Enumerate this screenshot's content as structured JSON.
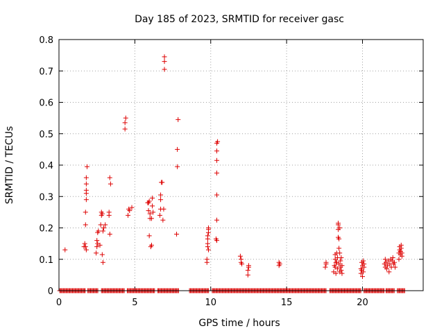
{
  "chart_data": {
    "type": "scatter",
    "title": "Day 185 of 2023, SRMTID for receiver gasc",
    "xlabel": "GPS time / hours",
    "ylabel": "SRMTID / TECUs",
    "xlim": [
      0,
      24
    ],
    "ylim": [
      0,
      0.8
    ],
    "xticks": [
      0,
      5,
      10,
      15,
      20
    ],
    "xtick_labels": [
      "0",
      "5",
      "10",
      "15",
      "20"
    ],
    "yticks": [
      0,
      0.1,
      0.2,
      0.3,
      0.4,
      0.5,
      0.6,
      0.7,
      0.8
    ],
    "ytick_labels": [
      "0",
      "0.1",
      "0.2",
      "0.3",
      "0.4",
      "0.5",
      "0.6",
      "0.7",
      "0.8"
    ],
    "grid": true,
    "marker": "+",
    "color": "#dd0000",
    "baseline_ranges": [
      [
        0.05,
        1.75
      ],
      [
        1.9,
        2.6
      ],
      [
        2.8,
        4.3
      ],
      [
        4.5,
        6.3
      ],
      [
        6.5,
        7.9
      ],
      [
        8.6,
        9.9
      ],
      [
        10.1,
        17.6
      ],
      [
        17.85,
        19.9
      ],
      [
        20.1,
        21.45
      ],
      [
        21.55,
        22.1
      ],
      [
        22.3,
        22.8
      ]
    ],
    "points": [
      [
        0.4,
        0.13
      ],
      [
        1.65,
        0.14
      ],
      [
        1.7,
        0.15
      ],
      [
        1.75,
        0.21
      ],
      [
        1.75,
        0.25
      ],
      [
        1.8,
        0.29
      ],
      [
        1.8,
        0.31
      ],
      [
        1.8,
        0.32
      ],
      [
        1.8,
        0.34
      ],
      [
        1.8,
        0.36
      ],
      [
        1.85,
        0.395
      ],
      [
        1.75,
        0.14
      ],
      [
        1.8,
        0.13
      ],
      [
        2.45,
        0.12
      ],
      [
        2.5,
        0.14
      ],
      [
        2.5,
        0.16
      ],
      [
        2.55,
        0.15
      ],
      [
        2.55,
        0.185
      ],
      [
        2.6,
        0.19
      ],
      [
        2.7,
        0.145
      ],
      [
        2.75,
        0.21
      ],
      [
        2.8,
        0.24
      ],
      [
        2.8,
        0.25
      ],
      [
        2.85,
        0.245
      ],
      [
        2.85,
        0.115
      ],
      [
        2.9,
        0.09
      ],
      [
        2.9,
        0.19
      ],
      [
        2.95,
        0.2
      ],
      [
        3.05,
        0.21
      ],
      [
        3.3,
        0.25
      ],
      [
        3.3,
        0.24
      ],
      [
        3.35,
        0.18
      ],
      [
        3.35,
        0.36
      ],
      [
        3.4,
        0.34
      ],
      [
        4.35,
        0.515
      ],
      [
        4.35,
        0.535
      ],
      [
        4.4,
        0.55
      ],
      [
        4.55,
        0.24
      ],
      [
        4.6,
        0.26
      ],
      [
        4.65,
        0.255
      ],
      [
        4.8,
        0.265
      ],
      [
        5.85,
        0.28
      ],
      [
        5.9,
        0.28
      ],
      [
        5.9,
        0.255
      ],
      [
        5.95,
        0.285
      ],
      [
        5.95,
        0.175
      ],
      [
        6.0,
        0.23
      ],
      [
        6.0,
        0.245
      ],
      [
        6.05,
        0.14
      ],
      [
        6.1,
        0.145
      ],
      [
        6.1,
        0.23
      ],
      [
        6.15,
        0.27
      ],
      [
        6.15,
        0.295
      ],
      [
        6.2,
        0.25
      ],
      [
        6.65,
        0.24
      ],
      [
        6.7,
        0.26
      ],
      [
        6.7,
        0.29
      ],
      [
        6.7,
        0.305
      ],
      [
        6.75,
        0.345
      ],
      [
        6.8,
        0.345
      ],
      [
        6.85,
        0.225
      ],
      [
        6.9,
        0.26
      ],
      [
        6.95,
        0.705
      ],
      [
        6.95,
        0.73
      ],
      [
        6.95,
        0.745
      ],
      [
        7.75,
        0.18
      ],
      [
        7.8,
        0.395
      ],
      [
        7.8,
        0.45
      ],
      [
        7.85,
        0.545
      ],
      [
        9.75,
        0.09
      ],
      [
        9.75,
        0.1
      ],
      [
        9.8,
        0.15
      ],
      [
        9.8,
        0.165
      ],
      [
        9.8,
        0.175
      ],
      [
        9.85,
        0.185
      ],
      [
        9.85,
        0.195
      ],
      [
        9.85,
        0.2
      ],
      [
        9.8,
        0.14
      ],
      [
        9.85,
        0.13
      ],
      [
        10.35,
        0.165
      ],
      [
        10.4,
        0.16
      ],
      [
        10.4,
        0.225
      ],
      [
        10.4,
        0.305
      ],
      [
        10.4,
        0.375
      ],
      [
        10.4,
        0.415
      ],
      [
        10.4,
        0.445
      ],
      [
        10.4,
        0.47
      ],
      [
        10.45,
        0.475
      ],
      [
        11.95,
        0.11
      ],
      [
        12.0,
        0.1
      ],
      [
        12.0,
        0.09
      ],
      [
        12.05,
        0.085
      ],
      [
        12.45,
        0.05
      ],
      [
        12.45,
        0.065
      ],
      [
        12.5,
        0.075
      ],
      [
        12.5,
        0.08
      ],
      [
        14.5,
        0.08
      ],
      [
        14.5,
        0.09
      ],
      [
        14.55,
        0.085
      ],
      [
        17.55,
        0.075
      ],
      [
        17.6,
        0.085
      ],
      [
        17.6,
        0.09
      ],
      [
        18.1,
        0.06
      ],
      [
        18.15,
        0.08
      ],
      [
        18.2,
        0.1
      ],
      [
        18.2,
        0.115
      ],
      [
        18.25,
        0.055
      ],
      [
        18.3,
        0.09
      ],
      [
        18.3,
        0.12
      ],
      [
        18.35,
        0.07
      ],
      [
        18.35,
        0.105
      ],
      [
        18.4,
        0.21
      ],
      [
        18.4,
        0.215
      ],
      [
        18.4,
        0.195
      ],
      [
        18.4,
        0.17
      ],
      [
        18.45,
        0.085
      ],
      [
        18.45,
        0.135
      ],
      [
        18.45,
        0.165
      ],
      [
        18.5,
        0.06
      ],
      [
        18.5,
        0.2
      ],
      [
        18.5,
        0.12
      ],
      [
        18.55,
        0.075
      ],
      [
        18.55,
        0.095
      ],
      [
        18.6,
        0.065
      ],
      [
        18.6,
        0.105
      ],
      [
        18.65,
        0.08
      ],
      [
        18.65,
        0.055
      ],
      [
        18.2,
        0.075
      ],
      [
        18.25,
        0.09
      ],
      [
        19.9,
        0.055
      ],
      [
        19.9,
        0.07
      ],
      [
        19.95,
        0.09
      ],
      [
        19.95,
        0.065
      ],
      [
        20.0,
        0.08
      ],
      [
        20.0,
        0.045
      ],
      [
        20.05,
        0.095
      ],
      [
        20.05,
        0.06
      ],
      [
        20.1,
        0.075
      ],
      [
        20.1,
        0.085
      ],
      [
        21.45,
        0.085
      ],
      [
        21.5,
        0.075
      ],
      [
        21.5,
        0.1
      ],
      [
        21.55,
        0.09
      ],
      [
        21.6,
        0.07
      ],
      [
        21.65,
        0.08
      ],
      [
        21.7,
        0.095
      ],
      [
        21.75,
        0.06
      ],
      [
        21.8,
        0.085
      ],
      [
        21.85,
        0.1
      ],
      [
        21.9,
        0.075
      ],
      [
        21.95,
        0.095
      ],
      [
        22.0,
        0.105
      ],
      [
        22.05,
        0.085
      ],
      [
        22.1,
        0.09
      ],
      [
        22.15,
        0.075
      ],
      [
        22.4,
        0.1
      ],
      [
        22.4,
        0.12
      ],
      [
        22.45,
        0.13
      ],
      [
        22.45,
        0.14
      ],
      [
        22.5,
        0.115
      ],
      [
        22.5,
        0.125
      ],
      [
        22.55,
        0.135
      ],
      [
        22.55,
        0.145
      ],
      [
        22.6,
        0.12
      ],
      [
        22.6,
        0.11
      ]
    ]
  }
}
